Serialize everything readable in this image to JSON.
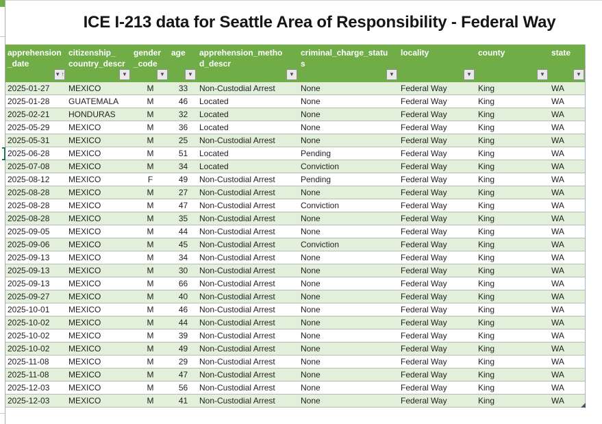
{
  "title": "ICE I-213 data for Seattle Area of Responsibility - Federal Way",
  "colors": {
    "header_green": "#70ad47",
    "band_green": "#e2efda",
    "active_cell_green": "#217346",
    "resize_handle": "#44546a"
  },
  "icons": {
    "filter_dropdown": "▼",
    "sort_ascending": "↑"
  },
  "table": {
    "columns": [
      {
        "key": "apprehension_date",
        "label": "apprehension_date",
        "lines": [
          "apprehension",
          "_date"
        ],
        "sorted_ascending": true
      },
      {
        "key": "citizenship_country_descr",
        "label": "citizenship_country_descr",
        "lines": [
          "citizenship_",
          "country_descr"
        ],
        "sorted_ascending": false
      },
      {
        "key": "gender_code",
        "label": "gender_code",
        "lines": [
          "gender",
          "_code"
        ],
        "sorted_ascending": false
      },
      {
        "key": "age",
        "label": "age",
        "lines": [
          "age"
        ],
        "sorted_ascending": false
      },
      {
        "key": "apprehension_method_descr",
        "label": "apprehension_method_descr",
        "lines": [
          "apprehension_metho",
          "d_descr"
        ],
        "sorted_ascending": false
      },
      {
        "key": "criminal_charge_status",
        "label": "criminal_charge_status",
        "lines": [
          "criminal_charge_statu",
          "s"
        ],
        "sorted_ascending": false
      },
      {
        "key": "locality",
        "label": "locality",
        "lines": [
          "locality"
        ],
        "sorted_ascending": false
      },
      {
        "key": "county",
        "label": "county",
        "lines": [
          "county"
        ],
        "sorted_ascending": false
      },
      {
        "key": "state",
        "label": "state",
        "lines": [
          "state"
        ],
        "sorted_ascending": false
      }
    ],
    "rows": [
      [
        "2025-01-27",
        "MEXICO",
        "M",
        "33",
        "Non-Custodial Arrest",
        "None",
        "Federal Way",
        "King",
        "WA"
      ],
      [
        "2025-01-28",
        "GUATEMALA",
        "M",
        "46",
        "Located",
        "None",
        "Federal Way",
        "King",
        "WA"
      ],
      [
        "2025-02-21",
        "HONDURAS",
        "M",
        "32",
        "Located",
        "None",
        "Federal Way",
        "King",
        "WA"
      ],
      [
        "2025-05-29",
        "MEXICO",
        "M",
        "36",
        "Located",
        "None",
        "Federal Way",
        "King",
        "WA"
      ],
      [
        "2025-05-31",
        "MEXICO",
        "M",
        "25",
        "Non-Custodial Arrest",
        "None",
        "Federal Way",
        "King",
        "WA"
      ],
      [
        "2025-06-28",
        "MEXICO",
        "M",
        "51",
        "Located",
        "Pending",
        "Federal Way",
        "King",
        "WA"
      ],
      [
        "2025-07-08",
        "MEXICO",
        "M",
        "34",
        "Located",
        "Conviction",
        "Federal Way",
        "King",
        "WA"
      ],
      [
        "2025-08-12",
        "MEXICO",
        "F",
        "49",
        "Non-Custodial Arrest",
        "Pending",
        "Federal Way",
        "King",
        "WA"
      ],
      [
        "2025-08-28",
        "MEXICO",
        "M",
        "27",
        "Non-Custodial Arrest",
        "None",
        "Federal Way",
        "King",
        "WA"
      ],
      [
        "2025-08-28",
        "MEXICO",
        "M",
        "47",
        "Non-Custodial Arrest",
        "Conviction",
        "Federal Way",
        "King",
        "WA"
      ],
      [
        "2025-08-28",
        "MEXICO",
        "M",
        "35",
        "Non-Custodial Arrest",
        "None",
        "Federal Way",
        "King",
        "WA"
      ],
      [
        "2025-09-05",
        "MEXICO",
        "M",
        "44",
        "Non-Custodial Arrest",
        "None",
        "Federal Way",
        "King",
        "WA"
      ],
      [
        "2025-09-06",
        "MEXICO",
        "M",
        "45",
        "Non-Custodial Arrest",
        "Conviction",
        "Federal Way",
        "King",
        "WA"
      ],
      [
        "2025-09-13",
        "MEXICO",
        "M",
        "34",
        "Non-Custodial Arrest",
        "None",
        "Federal Way",
        "King",
        "WA"
      ],
      [
        "2025-09-13",
        "MEXICO",
        "M",
        "30",
        "Non-Custodial Arrest",
        "None",
        "Federal Way",
        "King",
        "WA"
      ],
      [
        "2025-09-13",
        "MEXICO",
        "M",
        "66",
        "Non-Custodial Arrest",
        "None",
        "Federal Way",
        "King",
        "WA"
      ],
      [
        "2025-09-27",
        "MEXICO",
        "M",
        "40",
        "Non-Custodial Arrest",
        "None",
        "Federal Way",
        "King",
        "WA"
      ],
      [
        "2025-10-01",
        "MEXICO",
        "M",
        "46",
        "Non-Custodial Arrest",
        "None",
        "Federal Way",
        "King",
        "WA"
      ],
      [
        "2025-10-02",
        "MEXICO",
        "M",
        "44",
        "Non-Custodial Arrest",
        "None",
        "Federal Way",
        "King",
        "WA"
      ],
      [
        "2025-10-02",
        "MEXICO",
        "M",
        "39",
        "Non-Custodial Arrest",
        "None",
        "Federal Way",
        "King",
        "WA"
      ],
      [
        "2025-10-02",
        "MEXICO",
        "M",
        "49",
        "Non-Custodial Arrest",
        "None",
        "Federal Way",
        "King",
        "WA"
      ],
      [
        "2025-11-08",
        "MEXICO",
        "M",
        "29",
        "Non-Custodial Arrest",
        "None",
        "Federal Way",
        "King",
        "WA"
      ],
      [
        "2025-11-08",
        "MEXICO",
        "M",
        "47",
        "Non-Custodial Arrest",
        "None",
        "Federal Way",
        "King",
        "WA"
      ],
      [
        "2025-12-03",
        "MEXICO",
        "M",
        "56",
        "Non-Custodial Arrest",
        "None",
        "Federal Way",
        "King",
        "WA"
      ],
      [
        "2025-12-03",
        "MEXICO",
        "M",
        "41",
        "Non-Custodial Arrest",
        "None",
        "Federal Way",
        "King",
        "WA"
      ]
    ]
  }
}
